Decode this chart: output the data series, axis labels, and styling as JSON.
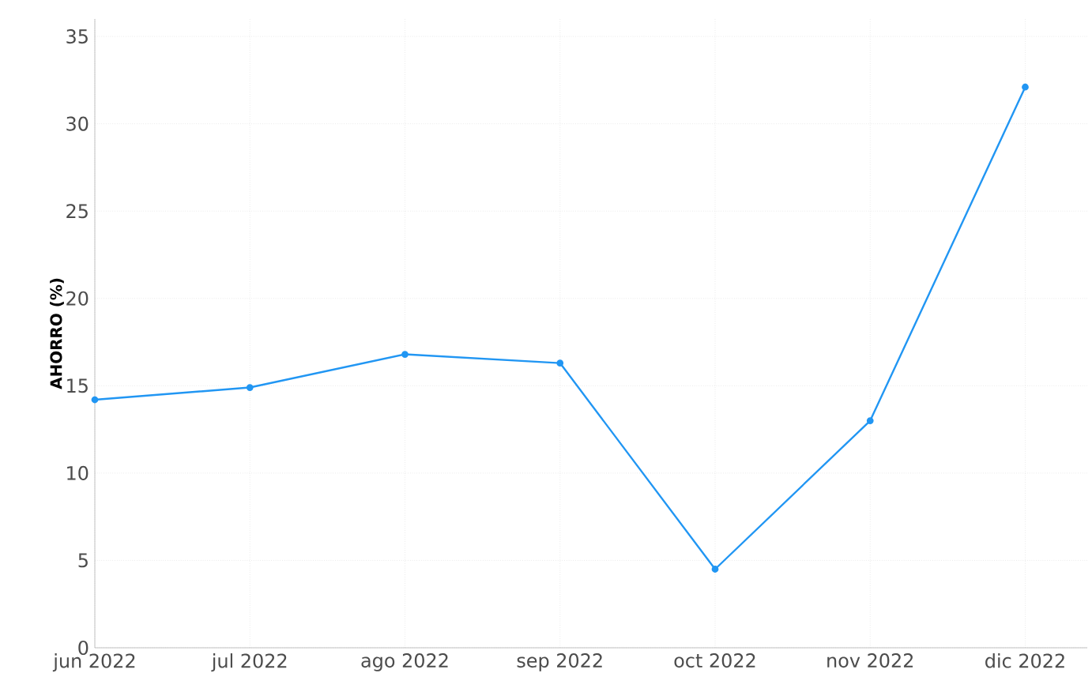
{
  "chart_data": {
    "type": "line",
    "ylabel": "AHORRO (%)",
    "categories": [
      "jun 2022",
      "jul 2022",
      "ago 2022",
      "sep 2022",
      "oct 2022",
      "nov 2022",
      "dic 2022"
    ],
    "values": [
      14.2,
      14.9,
      16.8,
      16.3,
      4.5,
      13.0,
      32.1
    ],
    "color": "#2196f3",
    "ylim": [
      0,
      36
    ],
    "yticks": [
      0,
      5,
      10,
      15,
      20,
      25,
      30,
      35
    ],
    "grid": true,
    "marker": "circle",
    "line_style": "solid"
  }
}
